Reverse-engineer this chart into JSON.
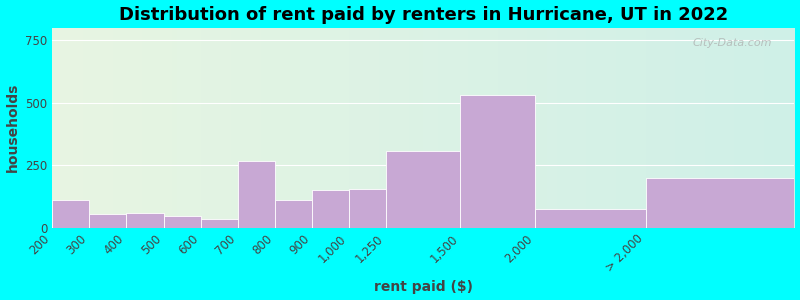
{
  "title": "Distribution of rent paid by renters in Hurricane, UT in 2022",
  "xlabel": "rent paid ($)",
  "ylabel": "households",
  "tick_labels": [
    "200",
    "300",
    "400",
    "500",
    "600",
    "700",
    "800",
    "900",
    "1,000",
    "1,250",
    "1,500",
    "2,000",
    "> 2,000"
  ],
  "bin_edges": [
    0,
    1,
    2,
    3,
    4,
    5,
    6,
    7,
    8,
    9,
    11,
    13,
    16,
    20
  ],
  "values": [
    110,
    55,
    60,
    45,
    35,
    265,
    110,
    150,
    155,
    305,
    530,
    75,
    200
  ],
  "bar_color": "#c8a8d4",
  "background_top_color": "#e8f5e2",
  "background_bottom_color": "#cff0e8",
  "outer_bg": "#00ffff",
  "ylim": [
    0,
    800
  ],
  "yticks": [
    0,
    250,
    500,
    750
  ],
  "title_fontsize": 13,
  "axis_label_fontsize": 10,
  "tick_fontsize": 8.5
}
